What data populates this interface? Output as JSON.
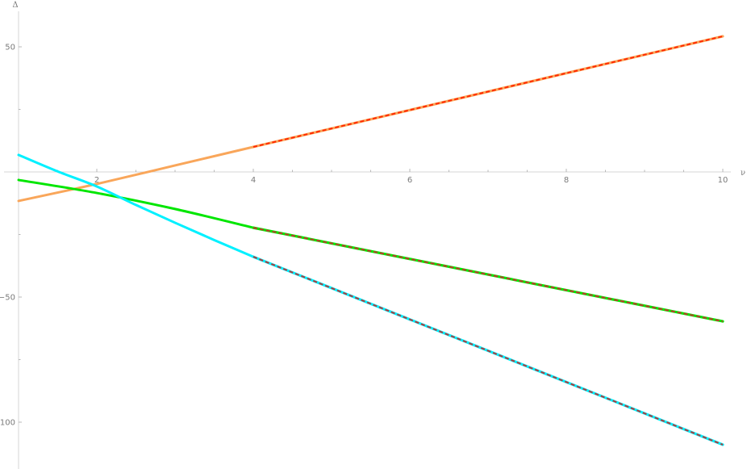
{
  "chart_data": {
    "type": "line",
    "title": "",
    "xlabel": "ν",
    "ylabel": "Δ",
    "xlim": [
      0.8,
      10.2
    ],
    "ylim": [
      -118,
      68
    ],
    "x_ticks": [
      2,
      4,
      6,
      8,
      10
    ],
    "x_tick_labels": [
      "2",
      "4",
      "6",
      "8",
      "10"
    ],
    "y_ticks": [
      50,
      -50,
      -100
    ],
    "y_tick_labels": [
      "50",
      "−50",
      "−100"
    ],
    "x_minor_step": 0.5,
    "y_minor_step": 25,
    "axes_origin": {
      "x": 1,
      "y": 0
    },
    "grid": false,
    "legend": null,
    "series": [
      {
        "name": "orange-curve",
        "color": "#F9A65A",
        "x": [
          1,
          2,
          3,
          4
        ],
        "values": [
          -11.6,
          -4.8,
          2.6,
          10.0
        ]
      },
      {
        "name": "orange-asymptote",
        "color": "#FF2A00",
        "overlay_color": "#F9A65A",
        "style": "dashed",
        "x": [
          4,
          10
        ],
        "values": [
          10.0,
          54.2
        ]
      },
      {
        "name": "green-curve",
        "color": "#00E600",
        "x": [
          1,
          2,
          3,
          4
        ],
        "values": [
          -3.2,
          -8.4,
          -14.8,
          -22.3
        ]
      },
      {
        "name": "green-asymptote",
        "color": "#C0392B",
        "overlay_color": "#00E600",
        "style": "dashed",
        "x": [
          4,
          10
        ],
        "values": [
          -22.3,
          -59.7
        ]
      },
      {
        "name": "cyan-curve",
        "color": "#00F0FF",
        "x": [
          1,
          1.5,
          2,
          2.5,
          3,
          3.5,
          4
        ],
        "values": [
          6.8,
          0.2,
          -5.8,
          -13.2,
          -20.3,
          -27.2,
          -33.9
        ]
      },
      {
        "name": "cyan-asymptote",
        "color": "#B03A3A",
        "overlay_color": "#00F0FF",
        "style": "dashed",
        "x": [
          4,
          10
        ],
        "values": [
          -33.9,
          -109.0
        ]
      }
    ]
  },
  "axes": {
    "x_label": "ν",
    "y_label": "Δ",
    "x_tick_labels": [
      "2",
      "4",
      "6",
      "8",
      "10"
    ],
    "y_tick_labels": [
      "50",
      "−50",
      "−100"
    ]
  }
}
